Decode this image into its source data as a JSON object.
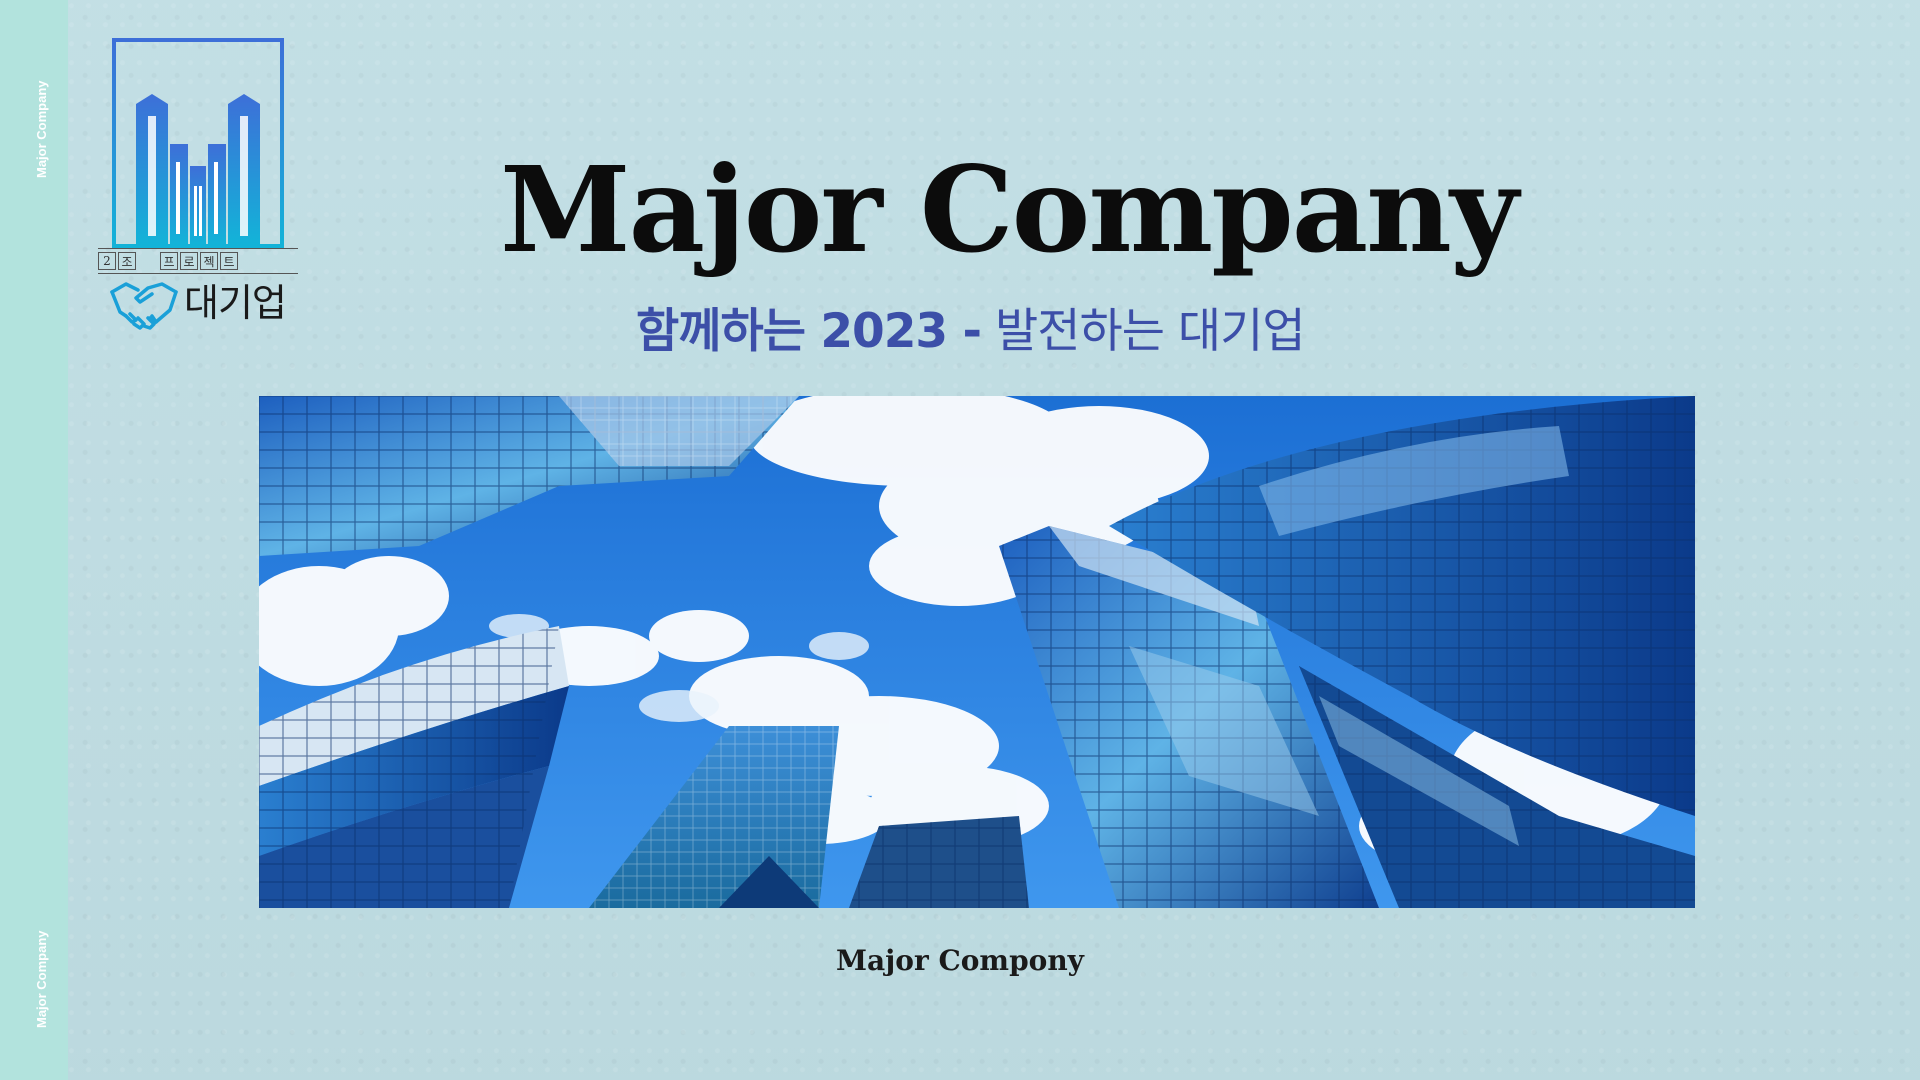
{
  "sidebar": {
    "top_label": "Major Company",
    "bottom_label": "Major Company"
  },
  "logo": {
    "row_cells": [
      "2",
      "조",
      "프",
      "로",
      "젝",
      "트"
    ],
    "korean_name": "대기업",
    "icon": "building-logo-icon",
    "handshake_icon": "handshake-icon"
  },
  "title": "Major Company",
  "subtitle": {
    "bold_part": "함께하는 2023 -",
    "regular_part": "발전하는 대기업"
  },
  "hero": {
    "image": "skyscrapers-photo"
  },
  "caption": "Major Compony",
  "colors": {
    "background": "#bfdde3",
    "strip": "#b2e3dd",
    "subtitle": "#3c4fa8",
    "logo_blue": "#1a9ad6"
  }
}
